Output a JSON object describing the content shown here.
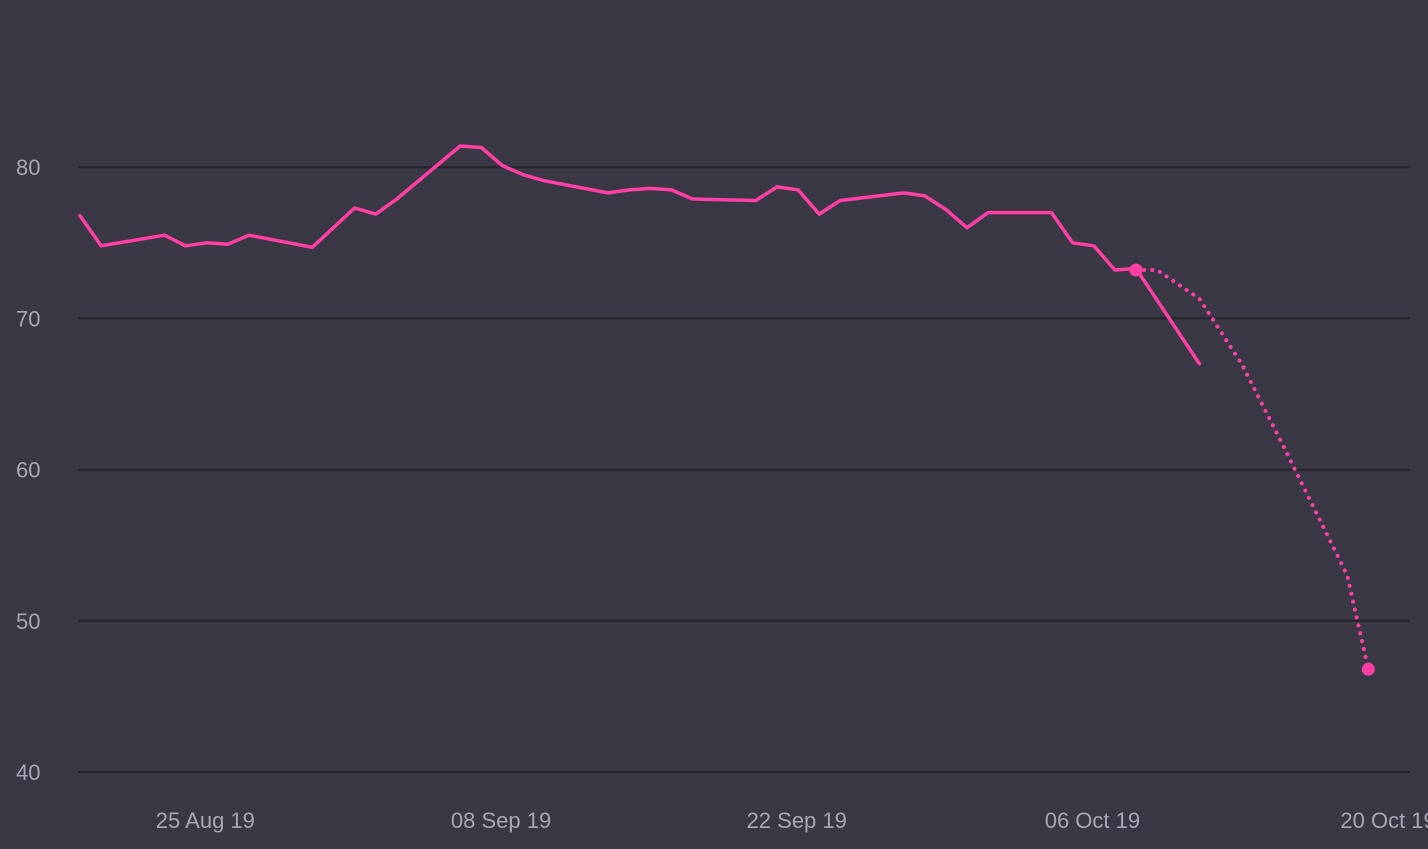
{
  "chart_data": {
    "type": "line",
    "title": "",
    "xlabel": "",
    "ylabel": "",
    "ylim": [
      40,
      90
    ],
    "y_ticks": [
      40,
      50,
      60,
      70,
      80
    ],
    "x_ticks": [
      "2019-08-25",
      "2019-09-08",
      "2019-09-22",
      "2019-10-06",
      "2019-10-20"
    ],
    "x_tick_labels": [
      "25 Aug 19",
      "08 Sep 19",
      "22 Sep 19",
      "06 Oct 19",
      "20 Oct 19"
    ],
    "grid": true,
    "series": [
      {
        "style": "solid",
        "color": "#ff3fa4",
        "x": [
          "2019-08-22",
          "2019-08-23",
          "2019-08-26",
          "2019-08-27",
          "2019-08-28",
          "2019-08-29",
          "2019-08-30",
          "2019-09-02",
          "2019-09-03",
          "2019-09-04",
          "2019-09-05",
          "2019-09-06",
          "2019-09-09",
          "2019-09-10",
          "2019-09-11",
          "2019-09-12",
          "2019-09-13",
          "2019-09-16",
          "2019-09-17",
          "2019-09-18",
          "2019-09-19",
          "2019-09-20",
          "2019-09-23",
          "2019-09-24",
          "2019-09-25",
          "2019-09-26",
          "2019-09-27",
          "2019-09-30",
          "2019-10-01",
          "2019-10-02",
          "2019-10-03",
          "2019-10-04",
          "2019-10-07",
          "2019-10-08",
          "2019-10-09",
          "2019-10-10",
          "2019-10-11",
          "2019-10-14"
        ],
        "y": [
          76.8,
          74.8,
          75.5,
          74.8,
          75.0,
          74.9,
          75.5,
          74.7,
          76.0,
          77.3,
          76.9,
          77.9,
          81.4,
          81.3,
          80.1,
          79.5,
          79.1,
          78.3,
          78.5,
          78.6,
          78.5,
          77.9,
          77.8,
          78.7,
          78.5,
          76.9,
          77.8,
          78.3,
          78.1,
          77.2,
          76.0,
          77.0,
          77.0,
          75.0,
          74.8,
          73.2,
          73.3,
          67.0
        ],
        "end_marker": true
      },
      {
        "style": "dotted",
        "color": "#ff3fa4",
        "x": [
          "2019-10-11",
          "2019-10-12",
          "2019-10-14",
          "2019-10-16",
          "2019-10-18",
          "2019-10-21",
          "2019-10-22"
        ],
        "y": [
          73.2,
          73.2,
          71.3,
          67.0,
          61.5,
          53.0,
          46.8
        ],
        "end_marker": true
      }
    ]
  }
}
